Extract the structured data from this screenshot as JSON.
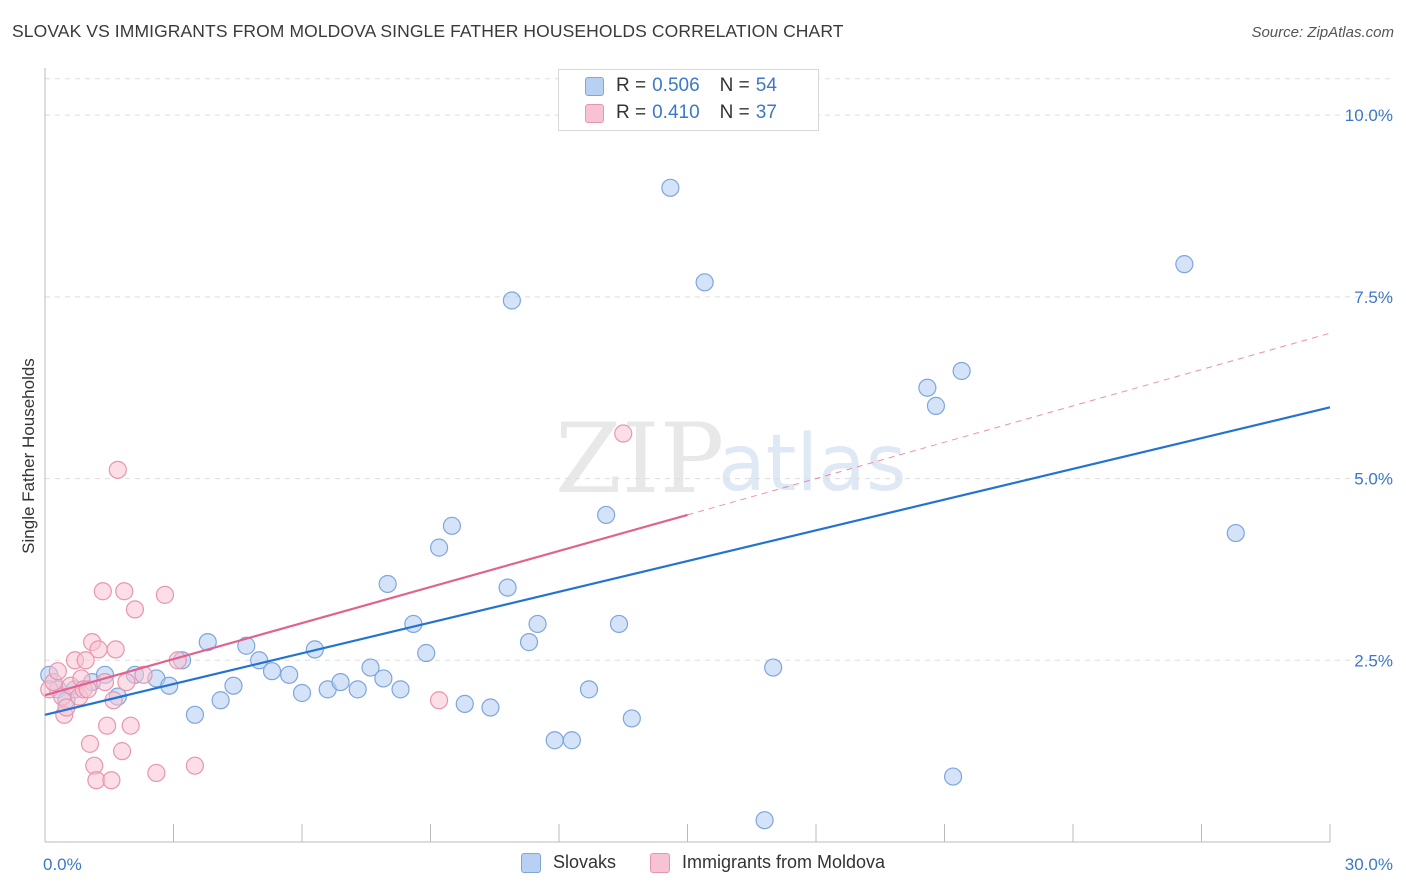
{
  "header": {
    "title": "SLOVAK VS IMMIGRANTS FROM MOLDOVA SINGLE FATHER HOUSEHOLDS CORRELATION CHART",
    "source": "Source: ZipAtlas.com"
  },
  "watermark": {
    "zip": "ZIP",
    "atlas": "atlas"
  },
  "legend": {
    "rows": [
      {
        "r_label": "R = ",
        "r_value": "0.506",
        "n_label": "N = ",
        "n_value": "54"
      },
      {
        "r_label": "R = ",
        "r_value": "0.410",
        "n_label": "N = ",
        "n_value": "37"
      }
    ]
  },
  "colors": {
    "slovak_fill": "#b8d0f2",
    "slovak_stroke": "#7ea6dc",
    "slovak_line": "#2474cf",
    "moldova_fill": "#f7c3d2",
    "moldova_stroke": "#e896b0",
    "moldova_line": "#e0628f",
    "tick_label": "#3b78c9",
    "grid": "#dddddd"
  },
  "chart_data": {
    "type": "scatter",
    "title": "SLOVAK VS IMMIGRANTS FROM MOLDOVA SINGLE FATHER HOUSEHOLDS CORRELATION CHART",
    "xlabel": "",
    "ylabel": "Single Father Households",
    "xlim": [
      0,
      30
    ],
    "ylim": [
      0,
      10.5
    ],
    "x_tick_labels": [
      "0.0%",
      "30.0%"
    ],
    "y_ticks": [
      2.5,
      5.0,
      7.5,
      10.0
    ],
    "y_tick_labels": [
      "2.5%",
      "5.0%",
      "7.5%",
      "10.0%"
    ],
    "legend_position": "top-center",
    "series": [
      {
        "name": "Slovaks",
        "r": 0.506,
        "n": 54,
        "trend": {
          "x": [
            0,
            30
          ],
          "y": [
            1.75,
            5.98
          ],
          "dashed_extension": false
        },
        "points": [
          [
            0.1,
            2.3
          ],
          [
            0.3,
            2.1
          ],
          [
            0.5,
            1.95
          ],
          [
            0.7,
            2.1
          ],
          [
            1.1,
            2.2
          ],
          [
            1.4,
            2.3
          ],
          [
            1.7,
            2.0
          ],
          [
            2.1,
            2.3
          ],
          [
            2.6,
            2.25
          ],
          [
            2.9,
            2.15
          ],
          [
            3.2,
            2.5
          ],
          [
            3.5,
            1.75
          ],
          [
            3.8,
            2.75
          ],
          [
            4.1,
            1.95
          ],
          [
            4.4,
            2.15
          ],
          [
            4.7,
            2.7
          ],
          [
            5.0,
            2.5
          ],
          [
            5.3,
            2.35
          ],
          [
            5.7,
            2.3
          ],
          [
            6.0,
            2.05
          ],
          [
            6.3,
            2.65
          ],
          [
            6.6,
            2.1
          ],
          [
            6.9,
            2.2
          ],
          [
            7.3,
            2.1
          ],
          [
            7.6,
            2.4
          ],
          [
            7.9,
            2.25
          ],
          [
            8.0,
            3.55
          ],
          [
            8.3,
            2.1
          ],
          [
            8.6,
            3.0
          ],
          [
            8.9,
            2.6
          ],
          [
            9.2,
            4.05
          ],
          [
            9.5,
            4.35
          ],
          [
            9.8,
            1.9
          ],
          [
            10.4,
            1.85
          ],
          [
            10.8,
            3.5
          ],
          [
            10.9,
            7.45
          ],
          [
            11.3,
            2.75
          ],
          [
            11.5,
            3.0
          ],
          [
            11.9,
            1.4
          ],
          [
            12.3,
            1.4
          ],
          [
            12.7,
            2.1
          ],
          [
            13.1,
            4.5
          ],
          [
            13.4,
            3.0
          ],
          [
            13.7,
            1.7
          ],
          [
            14.6,
            9.0
          ],
          [
            15.4,
            7.7
          ],
          [
            16.8,
            0.3
          ],
          [
            17.0,
            2.4
          ],
          [
            20.6,
            6.25
          ],
          [
            20.8,
            6.0
          ],
          [
            21.2,
            0.9
          ],
          [
            21.4,
            6.48
          ],
          [
            26.6,
            7.95
          ],
          [
            27.8,
            4.25
          ]
        ]
      },
      {
        "name": "Immigrants from Moldova",
        "r": 0.41,
        "n": 37,
        "trend": {
          "x": [
            0,
            15.0
          ],
          "y": [
            2.02,
            4.5
          ],
          "dashed_extension": true,
          "dashed_to": [
            30,
            7.0
          ]
        },
        "points": [
          [
            0.1,
            2.1
          ],
          [
            0.2,
            2.2
          ],
          [
            0.3,
            2.35
          ],
          [
            0.4,
            2.0
          ],
          [
            0.45,
            1.75
          ],
          [
            0.5,
            1.85
          ],
          [
            0.6,
            2.15
          ],
          [
            0.7,
            2.5
          ],
          [
            0.8,
            2.0
          ],
          [
            0.85,
            2.25
          ],
          [
            0.9,
            2.1
          ],
          [
            0.95,
            2.5
          ],
          [
            1.0,
            2.1
          ],
          [
            1.05,
            1.35
          ],
          [
            1.1,
            2.75
          ],
          [
            1.15,
            1.05
          ],
          [
            1.2,
            0.85
          ],
          [
            1.25,
            2.65
          ],
          [
            1.35,
            3.45
          ],
          [
            1.4,
            2.2
          ],
          [
            1.45,
            1.6
          ],
          [
            1.55,
            0.85
          ],
          [
            1.6,
            1.95
          ],
          [
            1.65,
            2.65
          ],
          [
            1.7,
            5.12
          ],
          [
            1.8,
            1.25
          ],
          [
            1.85,
            3.45
          ],
          [
            1.9,
            2.2
          ],
          [
            2.0,
            1.6
          ],
          [
            2.1,
            3.2
          ],
          [
            2.3,
            2.3
          ],
          [
            2.6,
            0.95
          ],
          [
            2.8,
            3.4
          ],
          [
            3.1,
            2.5
          ],
          [
            3.5,
            1.05
          ],
          [
            9.2,
            1.95
          ],
          [
            13.5,
            5.62
          ]
        ]
      }
    ]
  },
  "bottom_legend": {
    "items": [
      {
        "label": "Slovaks"
      },
      {
        "label": "Immigrants from Moldova"
      }
    ]
  }
}
